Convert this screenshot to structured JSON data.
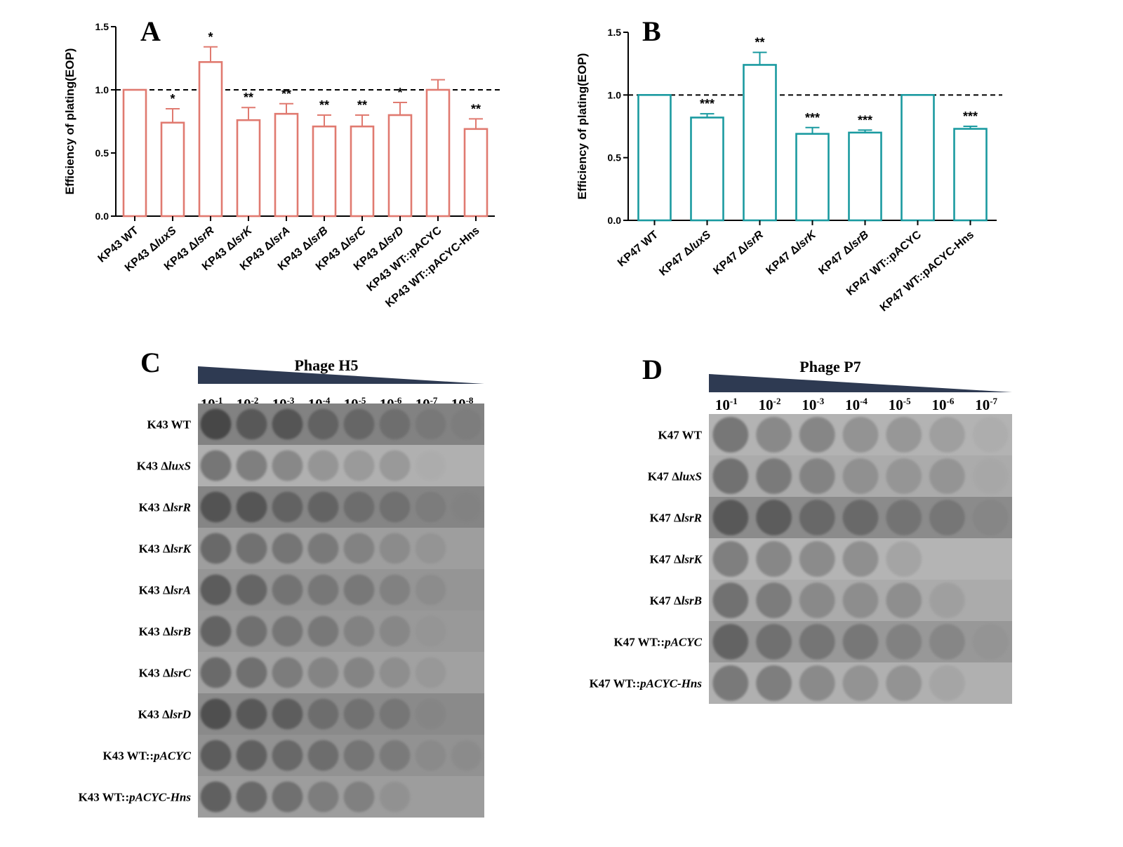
{
  "panels": {
    "A": "A",
    "B": "B",
    "C": "C",
    "D": "D"
  },
  "chart_data": [
    {
      "type": "bar",
      "panel": "A",
      "ylabel": "Efficiency of plating(EOP)",
      "ylim": [
        0,
        1.5
      ],
      "yticks": [
        "0.0",
        "0.5",
        "1.0",
        "1.5"
      ],
      "reference_line": 1.0,
      "color": "#e07a70",
      "categories": [
        "KP43 WT",
        "KP43 ΔluxS",
        "KP43 ΔlsrR",
        "KP43 ΔlsrK",
        "KP43 ΔlsrA",
        "KP43 ΔlsrB",
        "KP43 ΔlsrC",
        "KP43 ΔlsrD",
        "KP43 WT::pACYC",
        "KP43 WT::pACYC-Hns"
      ],
      "values": [
        1.0,
        0.74,
        1.22,
        0.76,
        0.81,
        0.71,
        0.71,
        0.8,
        1.0,
        0.69
      ],
      "errors": [
        0,
        0.11,
        0.12,
        0.1,
        0.08,
        0.09,
        0.09,
        0.1,
        0.08,
        0.08
      ],
      "significance": [
        "",
        "*",
        "*",
        "**",
        "**",
        "**",
        "**",
        "*",
        "",
        "**"
      ]
    },
    {
      "type": "bar",
      "panel": "B",
      "ylabel": "Efficiency of plating(EOP)",
      "ylim": [
        0,
        1.5
      ],
      "yticks": [
        "0.0",
        "0.5",
        "1.0",
        "1.5"
      ],
      "reference_line": 1.0,
      "color": "#1a9aa0",
      "categories": [
        "KP47 WT",
        "KP47 ΔluxS",
        "KP47 ΔlsrR",
        "KP47 ΔlsrK",
        "KP47 ΔlsrB",
        "KP47 WT::pACYC",
        "KP47 WT::pACYC-Hns"
      ],
      "values": [
        1.0,
        0.82,
        1.24,
        0.69,
        0.7,
        1.0,
        0.73
      ],
      "errors": [
        0,
        0.03,
        0.1,
        0.05,
        0.02,
        0,
        0.02
      ],
      "significance": [
        "",
        "***",
        "**",
        "***",
        "***",
        "",
        "***"
      ]
    }
  ],
  "plates": [
    {
      "panel": "C",
      "phage": "Phage H5",
      "dilutions": [
        "-1",
        "-2",
        "-3",
        "-4",
        "-5",
        "-6",
        "-7",
        "-8"
      ],
      "rows": [
        "K43 WT",
        "K43 ΔluxS",
        "K43 ΔlsrR",
        "K43 ΔlsrK",
        "K43 ΔlsrA",
        "K43 ΔlsrB",
        "K43 ΔlsrC",
        "K43 ΔlsrD",
        "K43 WT::pACYC",
        "K43 WT::pACYC-Hns"
      ],
      "visible_spots": [
        8,
        7,
        8,
        7,
        7,
        7,
        7,
        7,
        8,
        6
      ]
    },
    {
      "panel": "D",
      "phage": "Phage P7",
      "dilutions": [
        "-1",
        "-2",
        "-3",
        "-4",
        "-5",
        "-6",
        "-7"
      ],
      "rows": [
        "K47 WT",
        "K47 ΔluxS",
        "K47 ΔlsrR",
        "K47 ΔlsrK",
        "K47 ΔlsrB",
        "K47 WT::pACYC",
        "K47 WT::pACYC-Hns"
      ],
      "visible_spots": [
        7,
        7,
        7,
        5,
        6,
        7,
        6
      ]
    }
  ]
}
